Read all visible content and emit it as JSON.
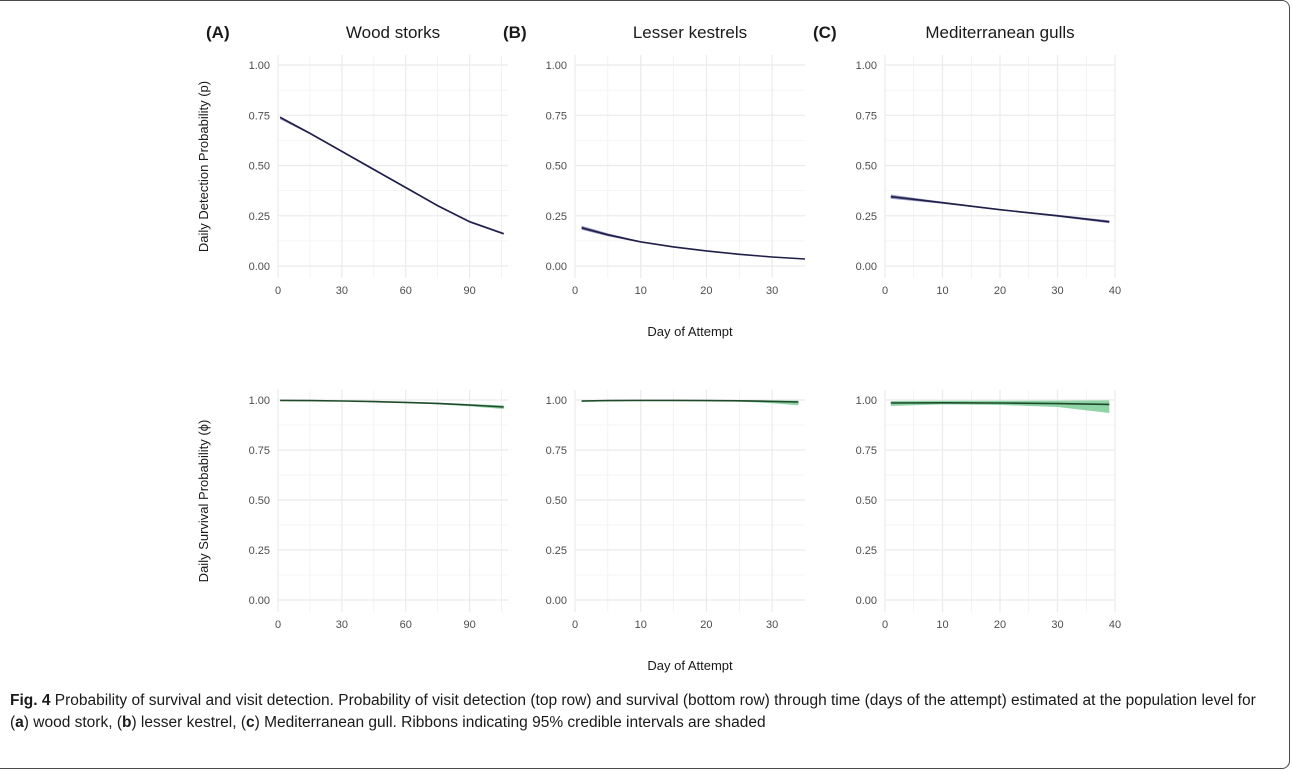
{
  "chart_data": {
    "type": "line",
    "colors": {
      "detection": "#1f1f48",
      "detection_band": "#6f6fa8",
      "survival": "#1f4a2a",
      "survival_band": "#69c58a",
      "grid": "#ebebeb"
    },
    "grid": true,
    "x_axis_label": "Day of Attempt",
    "y_labels": {
      "top": "Daily Detection Probability (p)",
      "bottom": "Daily Survival Probability (ϕ)"
    },
    "y_range": [
      0,
      1
    ],
    "y_ticks": [
      "0.00",
      "0.25",
      "0.50",
      "0.75",
      "1.00"
    ],
    "panels": [
      {
        "letter": "(A)",
        "title": "Wood storks",
        "xlim": [
          0,
          108
        ],
        "xticks": [
          0,
          30,
          60,
          90
        ],
        "detection": {
          "x": [
            1,
            15,
            30,
            45,
            60,
            75,
            90,
            106
          ],
          "y": [
            0.74,
            0.66,
            0.57,
            0.48,
            0.39,
            0.3,
            0.22,
            0.16
          ],
          "lower": [
            0.73,
            0.655,
            0.565,
            0.475,
            0.385,
            0.295,
            0.215,
            0.155
          ],
          "upper": [
            0.745,
            0.665,
            0.575,
            0.485,
            0.395,
            0.305,
            0.225,
            0.165
          ]
        },
        "survival": {
          "x": [
            1,
            15,
            30,
            45,
            60,
            75,
            90,
            106
          ],
          "y": [
            0.998,
            0.997,
            0.995,
            0.992,
            0.988,
            0.983,
            0.975,
            0.965
          ],
          "lower": [
            0.996,
            0.995,
            0.993,
            0.99,
            0.985,
            0.978,
            0.968,
            0.955
          ],
          "upper": [
            0.999,
            0.998,
            0.997,
            0.994,
            0.99,
            0.986,
            0.98,
            0.973
          ]
        }
      },
      {
        "letter": "(B)",
        "title": "Lesser kestrels",
        "xlim": [
          0,
          35
        ],
        "xticks": [
          0,
          10,
          20,
          30
        ],
        "detection": {
          "x": [
            1,
            5,
            10,
            15,
            20,
            25,
            30,
            35
          ],
          "y": [
            0.19,
            0.155,
            0.12,
            0.095,
            0.075,
            0.058,
            0.045,
            0.035
          ],
          "lower": [
            0.18,
            0.148,
            0.116,
            0.092,
            0.073,
            0.056,
            0.043,
            0.033
          ],
          "upper": [
            0.2,
            0.162,
            0.124,
            0.098,
            0.077,
            0.06,
            0.047,
            0.037
          ]
        },
        "survival": {
          "x": [
            1,
            5,
            10,
            15,
            20,
            25,
            30,
            34
          ],
          "y": [
            0.995,
            0.997,
            0.998,
            0.998,
            0.997,
            0.996,
            0.993,
            0.99
          ],
          "lower": [
            0.99,
            0.994,
            0.996,
            0.996,
            0.995,
            0.992,
            0.984,
            0.974
          ],
          "upper": [
            0.998,
            0.999,
            0.999,
            0.999,
            0.999,
            0.999,
            0.998,
            0.997
          ]
        }
      },
      {
        "letter": "(C)",
        "title": "Mediterranean gulls",
        "xlim": [
          0,
          40
        ],
        "xticks": [
          0,
          10,
          20,
          30,
          40
        ],
        "detection": {
          "x": [
            1,
            10,
            20,
            30,
            39
          ],
          "y": [
            0.345,
            0.315,
            0.28,
            0.25,
            0.22
          ],
          "lower": [
            0.335,
            0.31,
            0.277,
            0.245,
            0.213
          ],
          "upper": [
            0.355,
            0.32,
            0.283,
            0.255,
            0.227
          ]
        },
        "survival": {
          "x": [
            1,
            10,
            20,
            30,
            39
          ],
          "y": [
            0.985,
            0.986,
            0.985,
            0.982,
            0.978
          ],
          "lower": [
            0.97,
            0.978,
            0.975,
            0.965,
            0.935
          ],
          "upper": [
            0.995,
            0.996,
            0.996,
            0.997,
            0.998
          ]
        }
      }
    ]
  },
  "caption": {
    "fig_label": "Fig. 4",
    "text_1": " Probability of survival and visit detection. Probability of visit detection (top row) and survival (bottom row) through time (days of the attempt) estimated at the population level for (",
    "a": "a",
    "text_2": ") wood stork, (",
    "b": "b",
    "text_3": ") lesser kestrel, (",
    "c": "c",
    "text_4": ") Mediterranean gull. Ribbons indicating 95% credible intervals are shaded"
  }
}
